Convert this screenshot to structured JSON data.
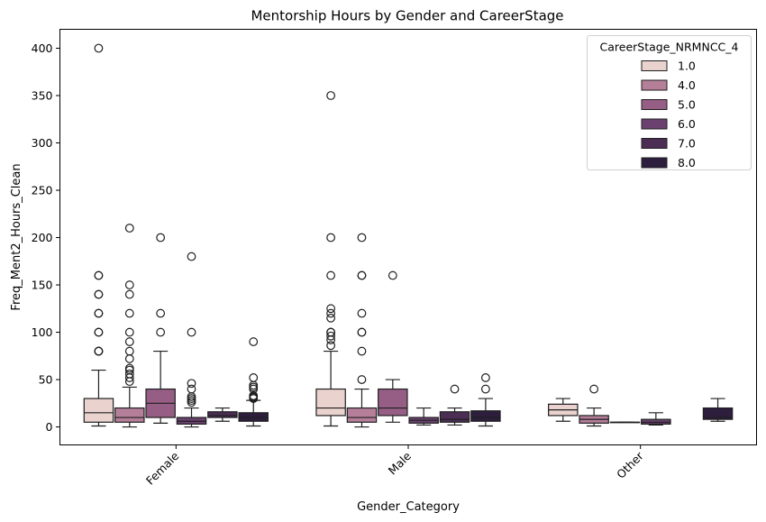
{
  "chart_data": {
    "type": "box",
    "title": "Mentorship Hours by Gender and CareerStage",
    "xlabel": "Gender_Category",
    "ylabel": "Freq_Ment2_Hours_Clean",
    "ylim": [
      -19,
      420
    ],
    "yticks": [
      0,
      50,
      100,
      150,
      200,
      250,
      300,
      350,
      400
    ],
    "ytick_labels": [
      "0",
      "50",
      "100",
      "150",
      "200",
      "250",
      "300",
      "350",
      "400"
    ],
    "categories": [
      "Female",
      "Male",
      "Other"
    ],
    "grid": false,
    "legend": {
      "title": "CareerStage_NRMNCC_4",
      "placement": "top-right",
      "entries": [
        "1.0",
        "4.0",
        "5.0",
        "6.0",
        "7.0",
        "8.0"
      ]
    },
    "series": [
      {
        "name": "1.0",
        "color": "#ead3cf",
        "boxes": [
          {
            "category": "Female",
            "whisker_low": 1,
            "q1": 5,
            "median": 15,
            "q3": 30,
            "whisker_high": 60,
            "outliers": [
              80,
              80,
              80,
              80,
              100,
              100,
              120,
              120,
              140,
              140,
              160,
              160,
              400
            ]
          },
          {
            "category": "Male",
            "whisker_low": 1,
            "q1": 12,
            "median": 20,
            "q3": 40,
            "whisker_high": 80,
            "outliers": [
              86,
              92,
              96,
              100,
              100,
              100,
              115,
              120,
              125,
              160,
              200,
              350
            ]
          },
          {
            "category": "Other",
            "whisker_low": 6,
            "q1": 12,
            "median": 18,
            "q3": 24,
            "whisker_high": 30,
            "outliers": []
          }
        ]
      },
      {
        "name": "4.0",
        "color": "#b57f9a",
        "boxes": [
          {
            "category": "Female",
            "whisker_low": 0,
            "q1": 5,
            "median": 10,
            "q3": 20,
            "whisker_high": 42,
            "outliers": [
              48,
              52,
              56,
              60,
              62,
              72,
              80,
              90,
              100,
              120,
              140,
              150,
              210
            ]
          },
          {
            "category": "Male",
            "whisker_low": 0,
            "q1": 5,
            "median": 10,
            "q3": 20,
            "whisker_high": 40,
            "outliers": [
              50,
              80,
              100,
              100,
              120,
              160,
              160,
              200
            ]
          },
          {
            "category": "Other",
            "whisker_low": 1,
            "q1": 4,
            "median": 8,
            "q3": 12,
            "whisker_high": 20,
            "outliers": [
              40
            ]
          }
        ]
      },
      {
        "name": "5.0",
        "color": "#965e85",
        "boxes": [
          {
            "category": "Female",
            "whisker_low": 4,
            "q1": 10,
            "median": 25,
            "q3": 40,
            "whisker_high": 80,
            "outliers": [
              100,
              120,
              200
            ]
          },
          {
            "category": "Male",
            "whisker_low": 5,
            "q1": 12,
            "median": 20,
            "q3": 40,
            "whisker_high": 50,
            "outliers": [
              160
            ]
          },
          {
            "category": "Other",
            "whisker_low": 5,
            "q1": 5,
            "median": 5,
            "q3": 5,
            "whisker_high": 5,
            "outliers": []
          }
        ]
      },
      {
        "name": "6.0",
        "color": "#6b4170",
        "boxes": [
          {
            "category": "Female",
            "whisker_low": 0,
            "q1": 3,
            "median": 6,
            "q3": 10,
            "whisker_high": 20,
            "outliers": [
              26,
              28,
              30,
              32,
              40,
              46,
              100,
              180
            ]
          },
          {
            "category": "Male",
            "whisker_low": 2,
            "q1": 4,
            "median": 7,
            "q3": 10,
            "whisker_high": 20,
            "outliers": []
          },
          {
            "category": "Other",
            "whisker_low": 2,
            "q1": 3,
            "median": 5,
            "q3": 8,
            "whisker_high": 15,
            "outliers": []
          }
        ]
      },
      {
        "name": "7.0",
        "color": "#4c2e55",
        "boxes": [
          {
            "category": "Female",
            "whisker_low": 6,
            "q1": 10,
            "median": 12,
            "q3": 16,
            "whisker_high": 20,
            "outliers": []
          },
          {
            "category": "Male",
            "whisker_low": 2,
            "q1": 5,
            "median": 8,
            "q3": 16,
            "whisker_high": 20,
            "outliers": [
              40
            ]
          }
        ]
      },
      {
        "name": "8.0",
        "color": "#2d1e3e",
        "boxes": [
          {
            "category": "Female",
            "whisker_low": 1,
            "q1": 6,
            "median": 10,
            "q3": 15,
            "whisker_high": 28,
            "outliers": [
              30,
              31,
              32,
              33,
              40,
              42,
              44,
              52,
              90
            ]
          },
          {
            "category": "Male",
            "whisker_low": 1,
            "q1": 6,
            "median": 10,
            "q3": 17,
            "whisker_high": 30,
            "outliers": [
              40,
              52
            ]
          },
          {
            "category": "Other",
            "whisker_low": 6,
            "q1": 8,
            "median": 10,
            "q3": 20,
            "whisker_high": 30,
            "outliers": []
          }
        ]
      }
    ]
  }
}
